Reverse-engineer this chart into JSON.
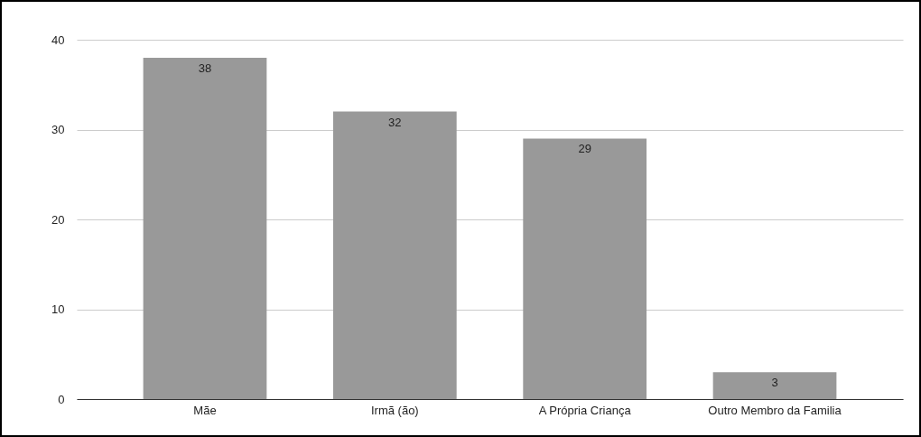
{
  "chart_data": {
    "type": "bar",
    "categories": [
      "Mãe",
      "Irmã (ão)",
      "A Própria Criança",
      "Outro Membro da Familia"
    ],
    "values": [
      38,
      32,
      29,
      3
    ],
    "color": "#999999",
    "ylim": [
      0,
      40
    ],
    "yticks": [
      0,
      10,
      20,
      30,
      40
    ],
    "grid": "y",
    "data_labels": true
  }
}
